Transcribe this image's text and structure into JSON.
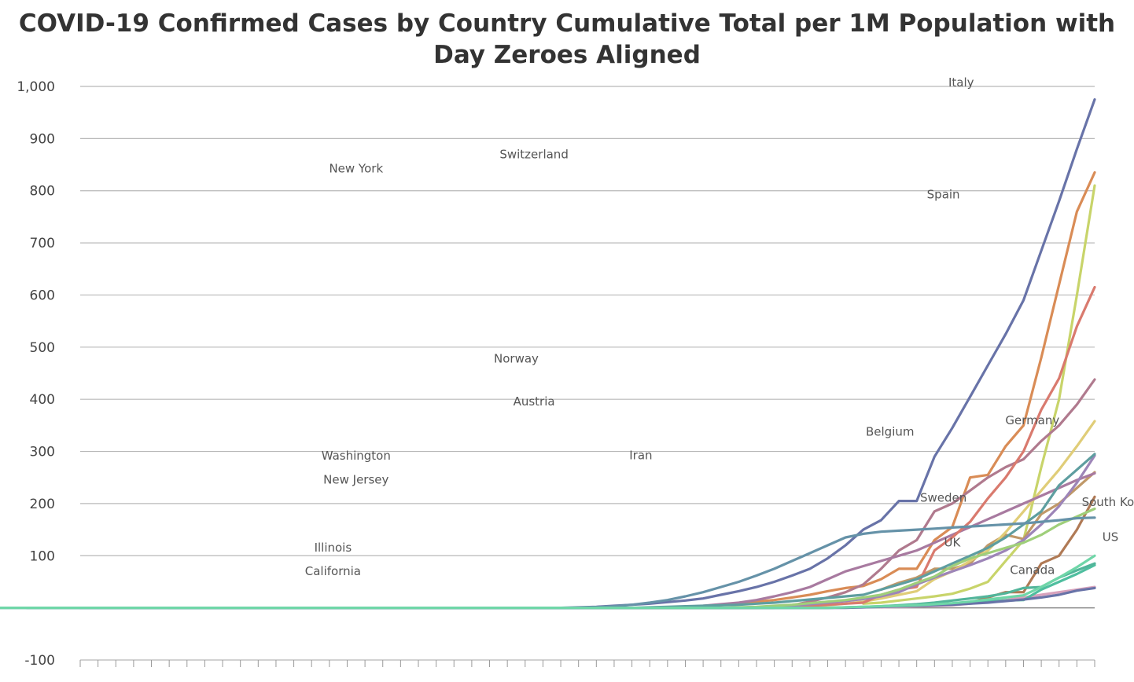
{
  "chart_data": {
    "type": "line",
    "title_line1": "COVID-19 Confirmed Cases by Country Cumulative Total per 1M Population with",
    "title_line2": "Day Zeroes Aligned",
    "xlabel": "",
    "ylabel": "",
    "ylim": [
      -100,
      1000
    ],
    "yticks": [
      -100,
      100,
      200,
      300,
      400,
      500,
      600,
      700,
      800,
      900,
      1000
    ],
    "ytick_labels": [
      "-100",
      "100",
      "200",
      "300",
      "400",
      "500",
      "600",
      "700",
      "800",
      "900",
      "1,000"
    ],
    "x_count": 58,
    "grid": true,
    "legend": "none (series labeled inline at line ends)",
    "series": [
      {
        "name": "New York",
        "color": "#C8D46A",
        "label_x": 15.5,
        "label_y": 835,
        "values": [
          8,
          10,
          14,
          18,
          22,
          27,
          37,
          50,
          90,
          130,
          270,
          400,
          600,
          810
        ]
      },
      {
        "name": "Washington",
        "color": "#C09868",
        "label_x": 15.5,
        "label_y": 284,
        "values": [
          35,
          48,
          58,
          75,
          75,
          85,
          120,
          140,
          132,
          180,
          200,
          230,
          260
        ]
      },
      {
        "name": "New Jersey",
        "color": "#B07A55",
        "label_x": 15.5,
        "label_y": 238,
        "values": [
          2,
          3,
          4,
          5,
          7,
          10,
          20,
          30,
          30,
          85,
          100,
          150,
          213
        ]
      },
      {
        "name": "Illinois",
        "color": "#D7A1BC",
        "label_x": 14.2,
        "label_y": 108,
        "values": [
          1,
          2,
          3,
          4,
          5,
          8,
          12,
          15,
          20,
          25,
          30,
          35,
          40
        ]
      },
      {
        "name": "California",
        "color": "#4FBE9F",
        "label_x": 14.2,
        "label_y": 63,
        "values": [
          3,
          4,
          5,
          6,
          8,
          10,
          12,
          14,
          15,
          35,
          50,
          65,
          82
        ]
      },
      {
        "name": "Switzerland",
        "color": "#D98C56",
        "label_x": 25.5,
        "label_y": 862,
        "values": [
          0,
          0,
          1,
          2,
          3,
          5,
          8,
          12,
          15,
          20,
          25,
          32,
          38,
          42,
          55,
          75,
          75,
          130,
          155,
          250,
          255,
          310,
          350,
          480,
          620,
          760,
          835
        ]
      },
      {
        "name": "Norway",
        "color": "#B07A8E",
        "label_x": 24.5,
        "label_y": 470,
        "values": [
          0,
          0,
          0,
          0,
          0,
          0,
          0,
          0,
          0,
          0,
          0,
          0,
          0,
          5,
          12,
          20,
          30,
          45,
          75,
          110,
          130,
          185,
          200,
          225,
          250,
          270,
          285,
          320,
          350,
          390,
          438
        ]
      },
      {
        "name": "Austria",
        "color": "#E0CD78",
        "label_x": 25.5,
        "label_y": 388,
        "values": [
          0,
          0,
          0,
          0,
          0,
          0,
          0,
          0,
          0,
          0,
          1,
          2,
          3,
          5,
          8,
          12,
          18,
          25,
          32,
          55,
          70,
          90,
          110,
          145,
          185,
          225,
          265,
          310,
          358
        ]
      },
      {
        "name": "Iran",
        "color": "#A87AA0",
        "label_x": 31.5,
        "label_y": 285,
        "values": [
          0,
          0,
          0,
          0,
          0,
          0,
          0,
          0,
          0,
          0,
          0,
          1,
          2,
          4,
          7,
          10,
          15,
          22,
          30,
          40,
          55,
          70,
          80,
          90,
          100,
          110,
          125,
          140,
          155,
          170,
          185,
          200,
          215,
          230,
          245,
          258
        ]
      },
      {
        "name": "Italy",
        "color": "#6873A8",
        "label_x": 49.5,
        "label_y": 1000,
        "values": [
          0,
          0,
          0,
          0,
          0,
          0,
          0,
          0,
          0,
          0,
          0,
          0,
          0,
          0,
          0,
          0,
          0,
          0,
          0,
          0,
          0,
          0,
          0,
          1,
          2,
          4,
          6,
          8,
          11,
          14,
          18,
          25,
          32,
          40,
          50,
          62,
          75,
          95,
          120,
          150,
          168,
          205,
          205,
          290,
          345,
          405,
          465,
          525,
          590,
          685,
          780,
          880,
          975
        ]
      },
      {
        "name": "Spain",
        "color": "#D97A6E",
        "label_x": 48.5,
        "label_y": 785,
        "values": [
          0,
          0,
          0,
          0,
          0,
          0,
          0,
          0,
          0,
          0,
          0,
          0,
          0,
          0,
          0,
          0,
          0,
          0,
          0,
          0,
          0,
          0,
          0,
          0,
          0,
          0,
          0,
          0,
          0,
          0,
          0,
          0,
          0,
          0,
          1,
          2,
          4,
          6,
          8,
          10,
          25,
          35,
          40,
          110,
          135,
          165,
          210,
          250,
          300,
          380,
          440,
          540,
          615
        ]
      },
      {
        "name": "Belgium",
        "color": "#9D85B8",
        "label_x": 45.5,
        "label_y": 330,
        "values": [
          0,
          0,
          0,
          0,
          0,
          0,
          0,
          0,
          0,
          0,
          0,
          0,
          0,
          0,
          0,
          0,
          0,
          0,
          0,
          0,
          0,
          0,
          0,
          0,
          0,
          0,
          0,
          0,
          0,
          0,
          1,
          2,
          4,
          7,
          10,
          13,
          17,
          22,
          30,
          45,
          58,
          70,
          82,
          95,
          110,
          130,
          160,
          195,
          240,
          292
        ]
      },
      {
        "name": "Germany",
        "color": "#5E9EA0",
        "label_x": 53.5,
        "label_y": 352,
        "values": [
          0,
          0,
          0,
          0,
          0,
          0,
          0,
          0,
          0,
          0,
          0,
          0,
          0,
          0,
          0,
          0,
          0,
          0,
          0,
          0,
          0,
          0,
          0,
          0,
          0,
          0,
          0,
          0,
          0,
          0,
          0,
          0,
          0,
          0,
          0,
          0,
          0,
          0,
          1,
          2,
          3,
          4,
          5,
          6,
          8,
          10,
          13,
          16,
          19,
          22,
          25,
          35,
          45,
          55,
          70,
          85,
          100,
          115,
          135,
          160,
          185,
          235,
          265,
          295
        ]
      },
      {
        "name": "Sweden",
        "color": "#9FCF7A",
        "label_x": 48.5,
        "label_y": 204,
        "values": [
          0,
          0,
          0,
          0,
          0,
          0,
          0,
          0,
          0,
          0,
          0,
          0,
          0,
          0,
          0,
          0,
          0,
          0,
          0,
          0,
          0,
          0,
          0,
          0,
          0,
          0,
          0,
          0,
          0,
          0,
          1,
          2,
          4,
          6,
          9,
          12,
          15,
          20,
          25,
          35,
          48,
          60,
          80,
          95,
          105,
          115,
          125,
          140,
          160,
          175,
          190
        ]
      },
      {
        "name": "South Kor",
        "color": "#6592A8",
        "label_x": 58,
        "label_y": 195,
        "values": [
          0,
          0,
          0,
          0,
          0,
          0,
          0,
          0,
          0,
          0,
          0,
          0,
          0,
          0,
          0,
          0,
          0,
          0,
          0,
          0,
          0,
          0,
          0,
          0,
          0,
          0,
          0,
          0,
          0,
          0,
          0,
          0,
          1,
          3,
          6,
          10,
          15,
          22,
          30,
          40,
          50,
          62,
          75,
          90,
          105,
          120,
          135,
          142,
          146,
          148,
          150,
          152,
          154,
          156,
          158,
          160,
          162,
          165,
          168,
          172,
          173
        ]
      },
      {
        "name": "UK",
        "color": "#52B59A",
        "label_x": 49,
        "label_y": 118,
        "values": [
          0,
          0,
          0,
          0,
          0,
          0,
          0,
          0,
          0,
          0,
          0,
          0,
          0,
          0,
          0,
          0,
          0,
          0,
          0,
          0,
          0,
          0,
          0,
          0,
          0,
          0,
          0,
          0,
          0,
          0,
          0,
          0,
          0,
          0,
          0,
          0,
          0,
          0,
          0,
          0,
          0,
          0,
          1,
          2,
          3,
          5,
          7,
          10,
          14,
          18,
          22,
          28,
          38,
          40,
          58,
          72,
          85
        ]
      },
      {
        "name": "Canada",
        "color": "#6873A8",
        "label_x": 53.5,
        "label_y": 65,
        "values": [
          0,
          0,
          0,
          0,
          0,
          0,
          0,
          0,
          0,
          0,
          0,
          0,
          0,
          0,
          0,
          0,
          0,
          0,
          0,
          0,
          0,
          0,
          0,
          0,
          0,
          0,
          0,
          0,
          0,
          0,
          0,
          0,
          0,
          0,
          0,
          0,
          0,
          0,
          0,
          0,
          0,
          0,
          0,
          0,
          1,
          2,
          3,
          4,
          5,
          6,
          8,
          10,
          13,
          16,
          20,
          25,
          33,
          38
        ]
      },
      {
        "name": "US",
        "color": "#6FD6A8",
        "label_x": 58,
        "label_y": 128,
        "values": [
          0,
          0,
          0,
          0,
          0,
          0,
          0,
          0,
          0,
          0,
          0,
          0,
          0,
          0,
          0,
          0,
          0,
          0,
          0,
          0,
          0,
          0,
          0,
          0,
          0,
          0,
          0,
          0,
          0,
          0,
          0,
          0,
          0,
          0,
          0,
          0,
          0,
          0,
          0,
          0,
          0,
          0,
          0,
          0,
          0,
          0,
          0,
          0,
          0,
          0,
          1,
          2,
          3,
          4,
          5,
          7,
          9,
          12,
          16,
          20,
          24,
          40,
          58,
          78,
          100
        ]
      }
    ]
  }
}
